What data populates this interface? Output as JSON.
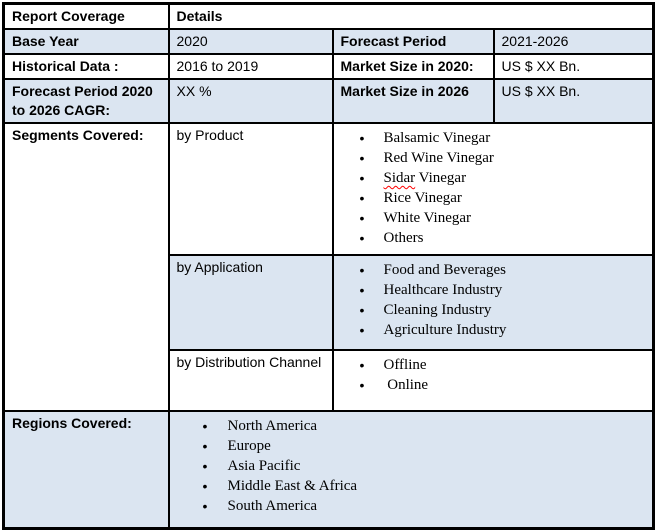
{
  "colors": {
    "row_shade": "#DBE5F1",
    "border": "#000000",
    "page_background": "#FFFFFF",
    "text": "#000000",
    "spellcheck_underline": "#FF0000"
  },
  "header": {
    "report_coverage": "Report Coverage",
    "details": "Details"
  },
  "info_rows": [
    {
      "label": "Base Year",
      "value": "2020",
      "label2": "Forecast Period",
      "value2": "2021-2026"
    },
    {
      "label": "Historical Data :",
      "value": "2016 to 2019",
      "label2": "Market Size in 2020:",
      "value2": "US $ XX Bn."
    },
    {
      "label": "Forecast Period 2020 to 2026 CAGR:",
      "value": "XX %",
      "label2": "Market Size in 2026",
      "value2": "US $ XX Bn."
    }
  ],
  "segments": {
    "label": "Segments Covered:",
    "groups": [
      {
        "name": "by Product",
        "items": [
          "Balsamic Vinegar",
          "Red Wine Vinegar",
          "Sidar Vinegar",
          "Rice Vinegar",
          "White Vinegar",
          "Others"
        ]
      },
      {
        "name": "by Application",
        "items": [
          "Food and Beverages",
          "Healthcare Industry",
          "Cleaning Industry",
          "Agriculture Industry"
        ]
      },
      {
        "name": "by Distribution Channel",
        "items": [
          "Offline",
          " Online"
        ]
      }
    ]
  },
  "regions": {
    "label": "Regions Covered:",
    "items": [
      "North America",
      "Europe",
      "Asia Pacific",
      "Middle East & Africa",
      "South America"
    ]
  },
  "spellcheck_words": [
    "Sidar"
  ]
}
